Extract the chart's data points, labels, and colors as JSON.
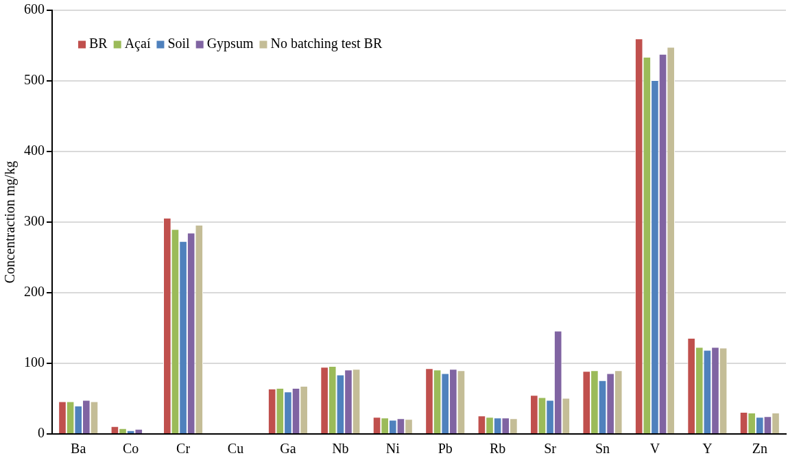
{
  "chart_data": {
    "type": "bar",
    "ylabel": "Concentraction mg/kg",
    "categories": [
      "Ba",
      "Co",
      "Cr",
      "Cu",
      "Ga",
      "Nb",
      "Ni",
      "Pb",
      "Rb",
      "Sr",
      "Sn",
      "V",
      "Y",
      "Zn"
    ],
    "series": [
      {
        "name": "BR",
        "color": "#c0504d",
        "values": [
          46,
          11,
          306,
          0,
          64,
          95,
          24,
          93,
          26,
          55,
          89,
          560,
          136,
          31
        ]
      },
      {
        "name": "Açaí",
        "color": "#9bbb59",
        "values": [
          46,
          8,
          290,
          0,
          65,
          96,
          23,
          91,
          24,
          52,
          90,
          534,
          123,
          30
        ]
      },
      {
        "name": "Soil",
        "color": "#4f81bd",
        "values": [
          40,
          5,
          273,
          0,
          60,
          84,
          20,
          86,
          23,
          48,
          76,
          501,
          119,
          24
        ]
      },
      {
        "name": "Gypsum",
        "color": "#8064a2",
        "values": [
          48,
          7,
          285,
          0,
          65,
          91,
          22,
          92,
          23,
          146,
          86,
          538,
          123,
          25
        ]
      },
      {
        "name": "No batching test BR",
        "color": "#c4bd97",
        "values": [
          46,
          0,
          296,
          0,
          68,
          92,
          21,
          90,
          22,
          51,
          90,
          548,
          122,
          30
        ]
      }
    ],
    "ylim": [
      0,
      600
    ],
    "yticks": [
      0,
      100,
      200,
      300,
      400,
      500,
      600
    ],
    "grid": "y",
    "legend": "top left"
  }
}
